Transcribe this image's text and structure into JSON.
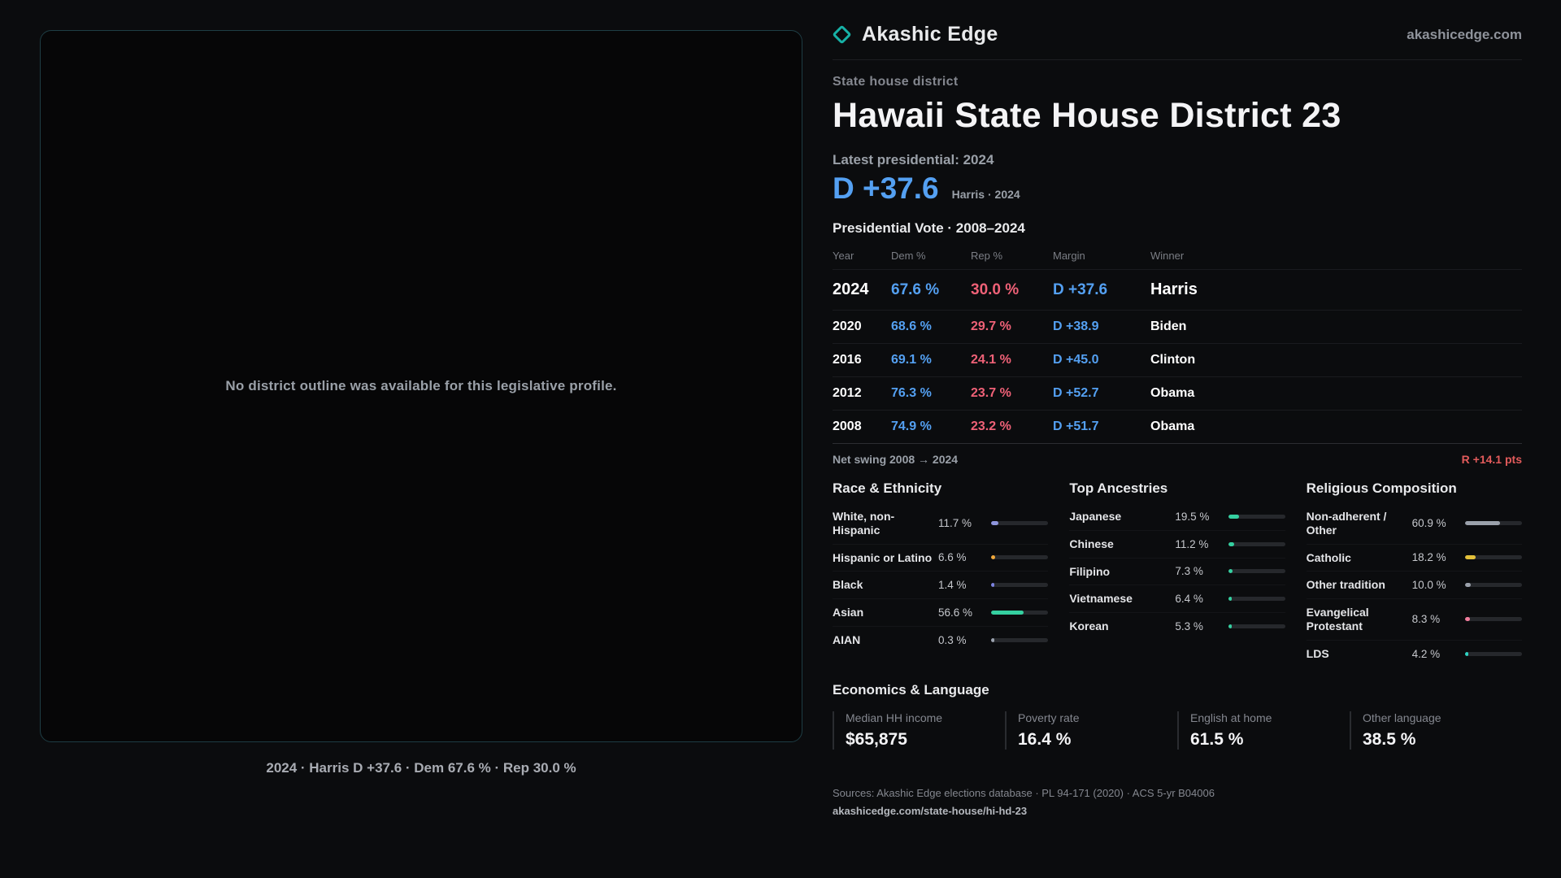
{
  "theme": {
    "accent_teal": "#17b1a6",
    "dem_blue": "#54a0f2",
    "rep_red": "#ef6177",
    "swing_red": "#e25b5b"
  },
  "header": {
    "brand": "Akashic Edge",
    "domain": "akashicedge.com"
  },
  "map_panel": {
    "placeholder": "No district outline was available for this legislative profile.",
    "caption": "2024 · Harris D +37.6 · Dem 67.6 % · Rep 30.0 %"
  },
  "profile": {
    "kicker": "State house district",
    "title": "Hawaii State House District 23",
    "latest_label": "Latest presidential: 2024",
    "headline_margin": "D +37.6",
    "headline_sub": "Harris · 2024"
  },
  "vote_table": {
    "title": "Presidential Vote · 2008–2024",
    "columns": [
      "Year",
      "Dem %",
      "Rep %",
      "Margin",
      "Winner"
    ],
    "rows": [
      {
        "year": "2024",
        "dem": "67.6 %",
        "rep": "30.0 %",
        "margin": "D +37.6",
        "winner": "Harris"
      },
      {
        "year": "2020",
        "dem": "68.6 %",
        "rep": "29.7 %",
        "margin": "D +38.9",
        "winner": "Biden"
      },
      {
        "year": "2016",
        "dem": "69.1 %",
        "rep": "24.1 %",
        "margin": "D +45.0",
        "winner": "Clinton"
      },
      {
        "year": "2012",
        "dem": "76.3 %",
        "rep": "23.7 %",
        "margin": "D +52.7",
        "winner": "Obama"
      },
      {
        "year": "2008",
        "dem": "74.9 %",
        "rep": "23.2 %",
        "margin": "D +51.7",
        "winner": "Obama"
      }
    ],
    "net_swing_label": "Net swing 2008 → 2024",
    "net_swing_value": "R +14.1 pts"
  },
  "demographics": {
    "race": {
      "title": "Race & Ethnicity",
      "rows": [
        {
          "label": "White, non-Hispanic",
          "value": "11.7 %",
          "pct": 11.7,
          "color": "#8f96dd"
        },
        {
          "label": "Hispanic or Latino",
          "value": "6.6 %",
          "pct": 6.6,
          "color": "#f2a93b"
        },
        {
          "label": "Black",
          "value": "1.4 %",
          "pct": 1.4,
          "color": "#7c83e0"
        },
        {
          "label": "Asian",
          "value": "56.6 %",
          "pct": 56.6,
          "color": "#35d0a0"
        },
        {
          "label": "AIAN",
          "value": "0.3 %",
          "pct": 0.3,
          "color": "#9ca3af"
        }
      ]
    },
    "ancestries": {
      "title": "Top Ancestries",
      "rows": [
        {
          "label": "Japanese",
          "value": "19.5 %",
          "pct": 19.5,
          "color": "#35d0a0"
        },
        {
          "label": "Chinese",
          "value": "11.2 %",
          "pct": 11.2,
          "color": "#35d0a0"
        },
        {
          "label": "Filipino",
          "value": "7.3 %",
          "pct": 7.3,
          "color": "#35d0a0"
        },
        {
          "label": "Vietnamese",
          "value": "6.4 %",
          "pct": 6.4,
          "color": "#35d0a0"
        },
        {
          "label": "Korean",
          "value": "5.3 %",
          "pct": 5.3,
          "color": "#35d0a0"
        }
      ]
    },
    "religion": {
      "title": "Religious Composition",
      "rows": [
        {
          "label": "Non-adherent / Other",
          "value": "60.9 %",
          "pct": 60.9,
          "color": "#9ba1ab"
        },
        {
          "label": "Catholic",
          "value": "18.2 %",
          "pct": 18.2,
          "color": "#e4c13a"
        },
        {
          "label": "Other tradition",
          "value": "10.0 %",
          "pct": 10.0,
          "color": "#9ba1ab"
        },
        {
          "label": "Evangelical Protestant",
          "value": "8.3 %",
          "pct": 8.3,
          "color": "#f27d9d"
        },
        {
          "label": "LDS",
          "value": "4.2 %",
          "pct": 4.2,
          "color": "#2fd4c3"
        }
      ]
    }
  },
  "economics": {
    "title": "Economics & Language",
    "stats": [
      {
        "label": "Median HH income",
        "value": "$65,875"
      },
      {
        "label": "Poverty rate",
        "value": "16.4 %"
      },
      {
        "label": "English at home",
        "value": "61.5 %"
      },
      {
        "label": "Other language",
        "value": "38.5 %"
      }
    ]
  },
  "footer": {
    "sources": "Sources: Akashic Edge elections database · PL 94-171 (2020) · ACS 5-yr B04006",
    "permalink": "akashicedge.com/state-house/hi-hd-23"
  }
}
